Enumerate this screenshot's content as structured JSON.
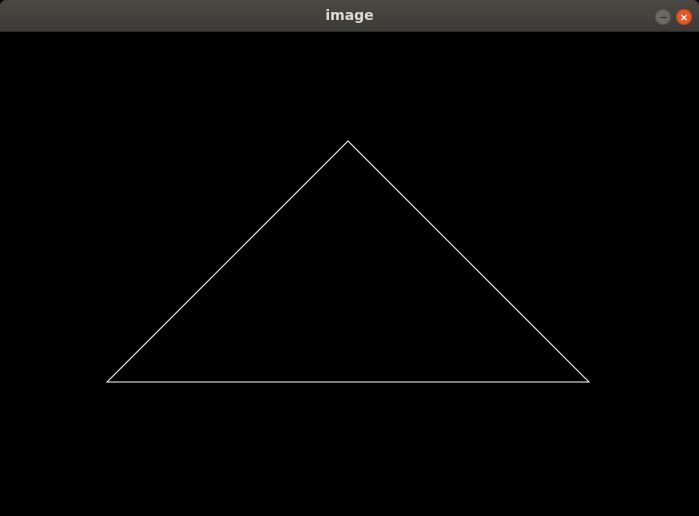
{
  "window": {
    "title": "image",
    "minimize_glyph": "minimize-icon",
    "close_glyph_text": "×"
  },
  "colors": {
    "titlebar": "#3f3e3a",
    "title_text": "#dfdbd2",
    "close_button": "#e95420",
    "minimize_button": "#6a6963",
    "canvas_background": "#000000",
    "line": "#ffffff"
  },
  "drawing": {
    "shape": "triangle",
    "stroke": "#ffffff"
  }
}
